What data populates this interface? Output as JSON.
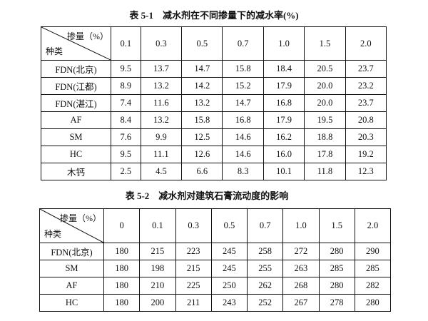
{
  "table1": {
    "title": "表 5-1　减水剂在不同掺量下的减水率(%)",
    "corner_top": "掺量（%）",
    "corner_bottom": "种类",
    "columns": [
      "0.1",
      "0.3",
      "0.5",
      "0.7",
      "1.0",
      "1.5",
      "2.0"
    ],
    "rows": [
      {
        "name": "FDN(北京)",
        "values": [
          "9.5",
          "13.7",
          "14.7",
          "15.8",
          "18.4",
          "20.5",
          "23.7"
        ]
      },
      {
        "name": "FDN(江都)",
        "values": [
          "8.9",
          "13.2",
          "14.2",
          "15.2",
          "17.9",
          "20.0",
          "23.2"
        ]
      },
      {
        "name": "FDN(湛江)",
        "values": [
          "7.4",
          "11.6",
          "13.2",
          "14.7",
          "16.8",
          "20.0",
          "23.7"
        ]
      },
      {
        "name": "AF",
        "values": [
          "8.4",
          "13.2",
          "15.8",
          "16.8",
          "17.9",
          "19.5",
          "20.8"
        ]
      },
      {
        "name": "SM",
        "values": [
          "7.6",
          "9.9",
          "12.5",
          "14.6",
          "16.2",
          "18.8",
          "20.3"
        ]
      },
      {
        "name": "HC",
        "values": [
          "9.5",
          "11.1",
          "12.6",
          "14.6",
          "16.0",
          "17.8",
          "19.2"
        ]
      },
      {
        "name": "木钙",
        "values": [
          "2.5",
          "4.5",
          "6.6",
          "8.3",
          "10.1",
          "11.8",
          "12.3"
        ]
      }
    ]
  },
  "table2": {
    "title": "表 5-2　减水剂对建筑石膏流动度的影响",
    "corner_top": "掺量（%）",
    "corner_bottom": "种类",
    "columns": [
      "0",
      "0.1",
      "0.3",
      "0.5",
      "0.7",
      "1.0",
      "1.5",
      "2.0"
    ],
    "rows": [
      {
        "name": "FDN(北京)",
        "values": [
          "180",
          "215",
          "223",
          "245",
          "258",
          "272",
          "280",
          "290"
        ]
      },
      {
        "name": "SM",
        "values": [
          "180",
          "198",
          "215",
          "245",
          "255",
          "263",
          "285",
          "285"
        ]
      },
      {
        "name": "AF",
        "values": [
          "180",
          "210",
          "225",
          "250",
          "262",
          "268",
          "280",
          "282"
        ]
      },
      {
        "name": "HC",
        "values": [
          "180",
          "200",
          "211",
          "243",
          "252",
          "267",
          "278",
          "280"
        ]
      }
    ]
  }
}
